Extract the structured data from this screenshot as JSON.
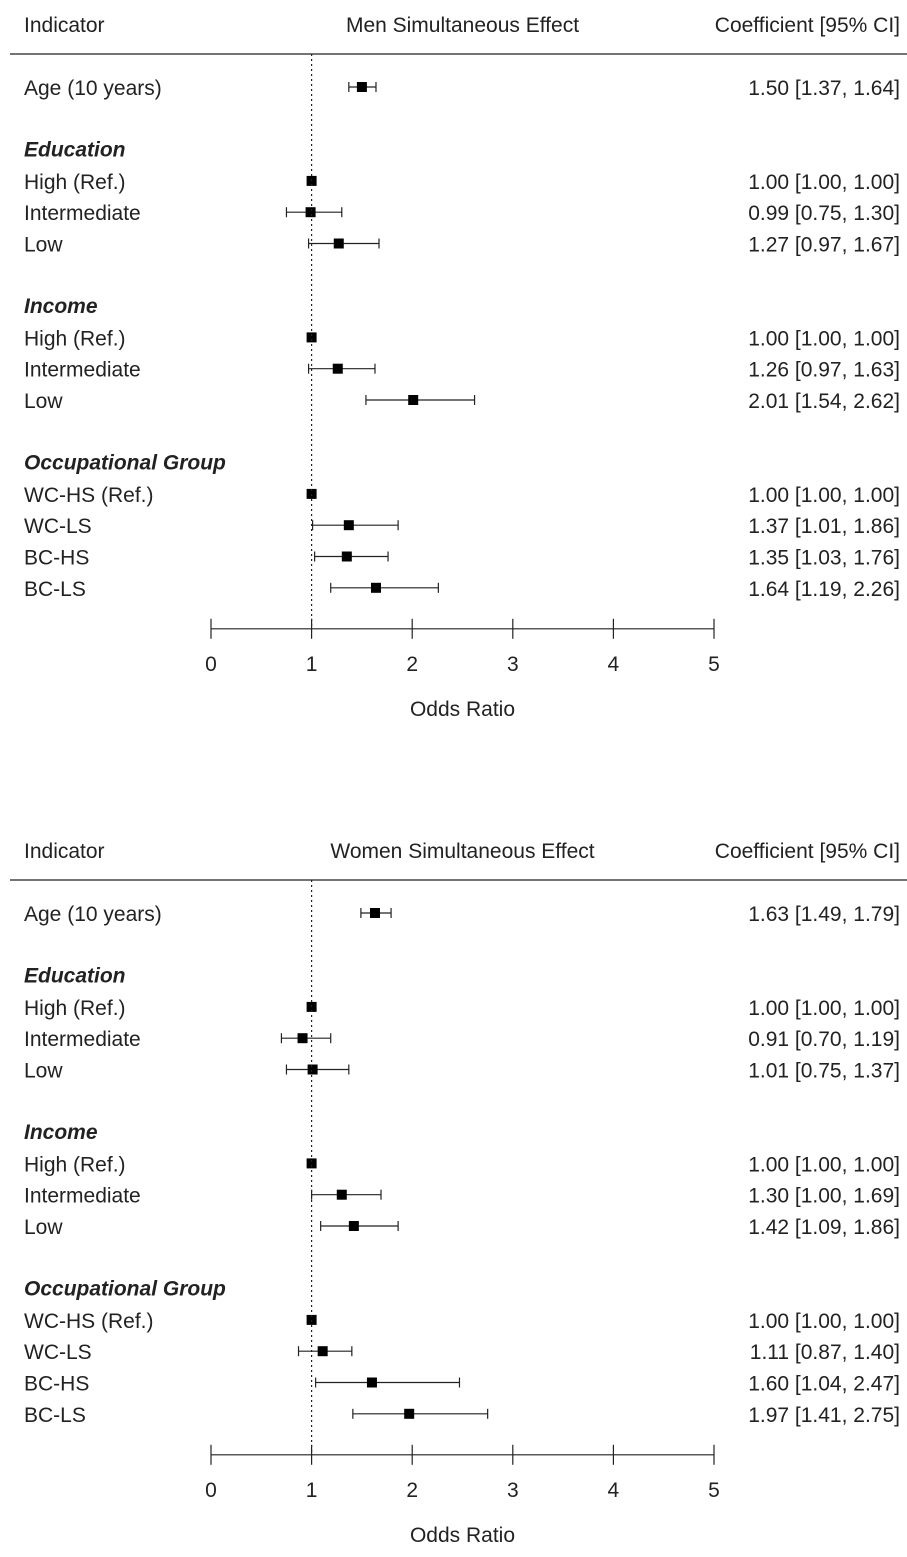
{
  "chart_data": [
    {
      "type": "forest",
      "header": {
        "left": "Indicator",
        "center": "Men Simultaneous Effect",
        "right": "Coefficient [95% CI]"
      },
      "xlabel": "Odds Ratio",
      "xlim": [
        0,
        5
      ],
      "xticks": [
        0,
        1,
        2,
        3,
        4,
        5
      ],
      "reference_line": 1,
      "rows": [
        {
          "kind": "item",
          "label": "Age (10 years)",
          "or": 1.5,
          "lo": 1.37,
          "hi": 1.64,
          "text": "1.50 [1.37, 1.64]"
        },
        {
          "kind": "gap"
        },
        {
          "kind": "group",
          "label": "Education"
        },
        {
          "kind": "item",
          "label": "High (Ref.)",
          "or": 1.0,
          "lo": 1.0,
          "hi": 1.0,
          "text": "1.00 [1.00, 1.00]"
        },
        {
          "kind": "item",
          "label": "Intermediate",
          "or": 0.99,
          "lo": 0.75,
          "hi": 1.3,
          "text": "0.99 [0.75, 1.30]"
        },
        {
          "kind": "item",
          "label": "Low",
          "or": 1.27,
          "lo": 0.97,
          "hi": 1.67,
          "text": "1.27 [0.97, 1.67]"
        },
        {
          "kind": "gap"
        },
        {
          "kind": "group",
          "label": "Income"
        },
        {
          "kind": "item",
          "label": "High (Ref.)",
          "or": 1.0,
          "lo": 1.0,
          "hi": 1.0,
          "text": "1.00 [1.00, 1.00]"
        },
        {
          "kind": "item",
          "label": "Intermediate",
          "or": 1.26,
          "lo": 0.97,
          "hi": 1.63,
          "text": "1.26 [0.97, 1.63]"
        },
        {
          "kind": "item",
          "label": "Low",
          "or": 2.01,
          "lo": 1.54,
          "hi": 2.62,
          "text": "2.01 [1.54, 2.62]"
        },
        {
          "kind": "gap"
        },
        {
          "kind": "group",
          "label": "Occupational Group"
        },
        {
          "kind": "item",
          "label": "WC-HS (Ref.)",
          "or": 1.0,
          "lo": 1.0,
          "hi": 1.0,
          "text": "1.00 [1.00, 1.00]"
        },
        {
          "kind": "item",
          "label": "WC-LS",
          "or": 1.37,
          "lo": 1.01,
          "hi": 1.86,
          "text": "1.37 [1.01, 1.86]"
        },
        {
          "kind": "item",
          "label": "BC-HS",
          "or": 1.35,
          "lo": 1.03,
          "hi": 1.76,
          "text": "1.35 [1.03, 1.76]"
        },
        {
          "kind": "item",
          "label": "BC-LS",
          "or": 1.64,
          "lo": 1.19,
          "hi": 2.26,
          "text": "1.64 [1.19, 2.26]"
        }
      ]
    },
    {
      "type": "forest",
      "header": {
        "left": "Indicator",
        "center": "Women Simultaneous Effect",
        "right": "Coefficient [95% CI]"
      },
      "xlabel": "Odds Ratio",
      "xlim": [
        0,
        5
      ],
      "xticks": [
        0,
        1,
        2,
        3,
        4,
        5
      ],
      "reference_line": 1,
      "rows": [
        {
          "kind": "item",
          "label": "Age (10 years)",
          "or": 1.63,
          "lo": 1.49,
          "hi": 1.79,
          "text": "1.63 [1.49, 1.79]"
        },
        {
          "kind": "gap"
        },
        {
          "kind": "group",
          "label": "Education"
        },
        {
          "kind": "item",
          "label": "High (Ref.)",
          "or": 1.0,
          "lo": 1.0,
          "hi": 1.0,
          "text": "1.00 [1.00, 1.00]"
        },
        {
          "kind": "item",
          "label": "Intermediate",
          "or": 0.91,
          "lo": 0.7,
          "hi": 1.19,
          "text": "0.91 [0.70, 1.19]"
        },
        {
          "kind": "item",
          "label": "Low",
          "or": 1.01,
          "lo": 0.75,
          "hi": 1.37,
          "text": "1.01 [0.75, 1.37]"
        },
        {
          "kind": "gap"
        },
        {
          "kind": "group",
          "label": "Income"
        },
        {
          "kind": "item",
          "label": "High (Ref.)",
          "or": 1.0,
          "lo": 1.0,
          "hi": 1.0,
          "text": "1.00 [1.00, 1.00]"
        },
        {
          "kind": "item",
          "label": "Intermediate",
          "or": 1.3,
          "lo": 1.0,
          "hi": 1.69,
          "text": "1.30 [1.00, 1.69]"
        },
        {
          "kind": "item",
          "label": "Low",
          "or": 1.42,
          "lo": 1.09,
          "hi": 1.86,
          "text": "1.42 [1.09, 1.86]"
        },
        {
          "kind": "gap"
        },
        {
          "kind": "group",
          "label": "Occupational Group"
        },
        {
          "kind": "item",
          "label": "WC-HS (Ref.)",
          "or": 1.0,
          "lo": 1.0,
          "hi": 1.0,
          "text": "1.00 [1.00, 1.00]"
        },
        {
          "kind": "item",
          "label": "WC-LS",
          "or": 1.11,
          "lo": 0.87,
          "hi": 1.4,
          "text": "1.11 [0.87, 1.40]"
        },
        {
          "kind": "item",
          "label": "BC-HS",
          "or": 1.6,
          "lo": 1.04,
          "hi": 2.47,
          "text": "1.60 [1.04, 2.47]"
        },
        {
          "kind": "item",
          "label": "BC-LS",
          "or": 1.97,
          "lo": 1.41,
          "hi": 2.75,
          "text": "1.97 [1.41, 2.75]"
        }
      ]
    }
  ]
}
